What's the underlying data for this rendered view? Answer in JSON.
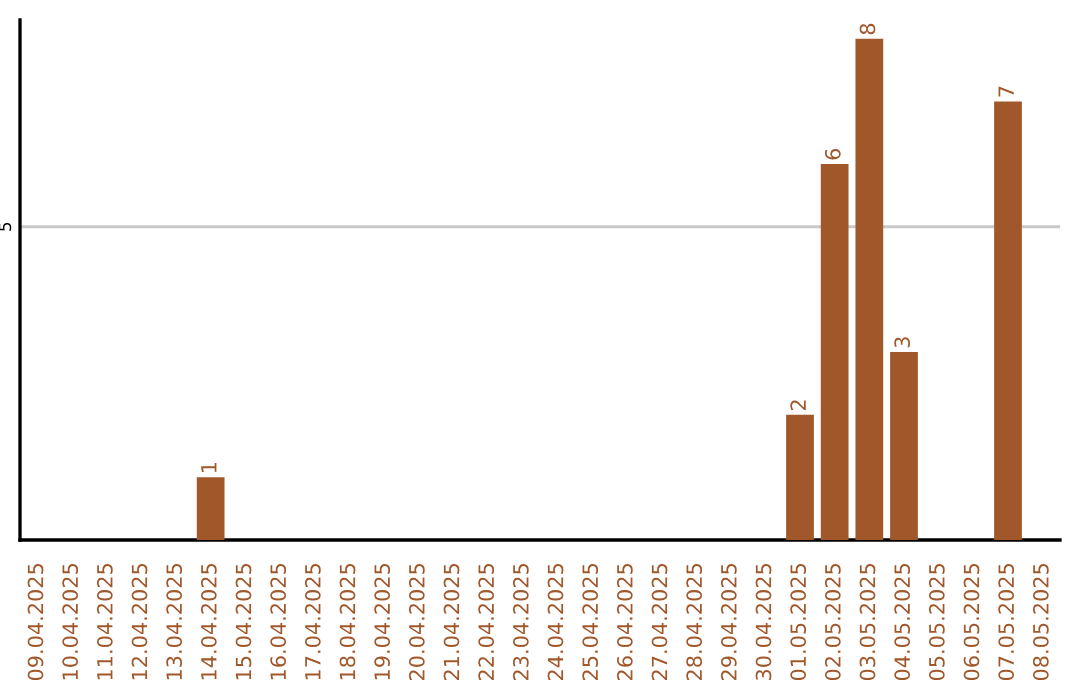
{
  "chart_data": {
    "type": "bar",
    "categories": [
      "09.04.2025",
      "10.04.2025",
      "11.04.2025",
      "12.04.2025",
      "13.04.2025",
      "14.04.2025",
      "15.04.2025",
      "16.04.2025",
      "17.04.2025",
      "18.04.2025",
      "19.04.2025",
      "20.04.2025",
      "21.04.2025",
      "22.04.2025",
      "23.04.2025",
      "24.04.2025",
      "25.04.2025",
      "26.04.2025",
      "27.04.2025",
      "28.04.2025",
      "29.04.2025",
      "30.04.2025",
      "01.05.2025",
      "02.05.2025",
      "03.05.2025",
      "04.05.2025",
      "05.05.2025",
      "06.05.2025",
      "07.05.2025",
      "08.05.2025"
    ],
    "values": [
      0,
      0,
      0,
      0,
      0,
      1,
      0,
      0,
      0,
      0,
      0,
      0,
      0,
      0,
      0,
      0,
      0,
      0,
      0,
      0,
      0,
      0,
      2,
      6,
      8,
      3,
      0,
      0,
      7,
      0
    ],
    "value_labels": [
      null,
      null,
      null,
      null,
      null,
      "1",
      null,
      null,
      null,
      null,
      null,
      null,
      null,
      null,
      null,
      null,
      null,
      null,
      null,
      null,
      null,
      null,
      "2",
      "6",
      "8",
      "3",
      null,
      null,
      "7",
      null
    ],
    "color": "#a0572a",
    "ylim": [
      0,
      8.3
    ],
    "yticks": [
      5
    ],
    "grid": "y",
    "legend": false
  }
}
